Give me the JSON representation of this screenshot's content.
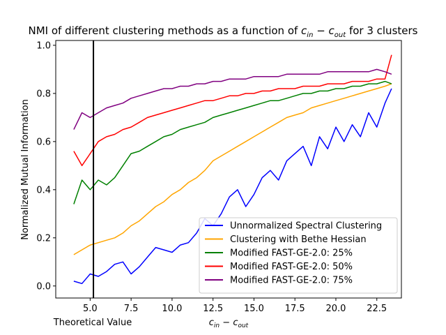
{
  "chart_data": {
    "type": "line",
    "title_prefix": "NMI of different clustering methods as a function of ",
    "title_math_a": "c",
    "title_sub_a": "in",
    "title_minus": " − ",
    "title_math_b": "c",
    "title_sub_b": "out",
    "title_suffix": " for 3 clusters",
    "xlabel_math_a": "c",
    "xlabel_sub_a": "in",
    "xlabel_minus": " − ",
    "xlabel_math_b": "c",
    "xlabel_sub_b": "out",
    "ylabel": "Normalized Mutual Information",
    "xlim": [
      2.9,
      24.0
    ],
    "ylim": [
      -0.05,
      1.02
    ],
    "xticks": [
      5.0,
      7.5,
      10.0,
      12.5,
      15.0,
      17.5,
      20.0,
      22.5
    ],
    "xtick_labels": [
      "5.0",
      "7.5",
      "10.0",
      "12.5",
      "15.0",
      "17.5",
      "20.0",
      "22.5"
    ],
    "yticks": [
      0.0,
      0.2,
      0.4,
      0.6,
      0.8,
      1.0
    ],
    "ytick_labels": [
      "0.0",
      "0.2",
      "0.4",
      "0.6",
      "0.8",
      "1.0"
    ],
    "vline": {
      "x": 5.2,
      "color": "#000000",
      "label": "Theoretical Value"
    },
    "grid": false,
    "legend_position": "lower-right",
    "series": [
      {
        "name": "Unnormalized Spectral Clustering",
        "color": "#0000ff",
        "x": [
          4.0,
          4.5,
          5.0,
          5.5,
          6.0,
          6.5,
          7.0,
          7.5,
          8.0,
          8.5,
          9.0,
          9.5,
          10.0,
          10.5,
          11.0,
          11.5,
          12.0,
          12.5,
          13.0,
          13.5,
          14.0,
          14.5,
          15.0,
          15.5,
          16.0,
          16.5,
          17.0,
          17.5,
          18.0,
          18.5,
          19.0,
          19.5,
          20.0,
          20.5,
          21.0,
          21.5,
          22.0,
          22.5,
          23.0,
          23.4
        ],
        "values": [
          0.02,
          0.01,
          0.05,
          0.04,
          0.06,
          0.09,
          0.1,
          0.05,
          0.08,
          0.12,
          0.16,
          0.15,
          0.14,
          0.17,
          0.18,
          0.22,
          0.28,
          0.25,
          0.3,
          0.37,
          0.4,
          0.33,
          0.38,
          0.45,
          0.48,
          0.44,
          0.52,
          0.55,
          0.58,
          0.5,
          0.62,
          0.57,
          0.66,
          0.6,
          0.67,
          0.62,
          0.72,
          0.66,
          0.76,
          0.82
        ]
      },
      {
        "name": "Clustering with Bethe Hessian",
        "color": "#ffa500",
        "x": [
          4.0,
          4.5,
          5.0,
          5.5,
          6.0,
          6.5,
          7.0,
          7.5,
          8.0,
          8.5,
          9.0,
          9.5,
          10.0,
          10.5,
          11.0,
          11.5,
          12.0,
          12.5,
          13.0,
          13.5,
          14.0,
          14.5,
          15.0,
          15.5,
          16.0,
          16.5,
          17.0,
          17.5,
          18.0,
          18.5,
          19.0,
          19.5,
          20.0,
          20.5,
          21.0,
          21.5,
          22.0,
          22.5,
          23.0,
          23.4
        ],
        "values": [
          0.13,
          0.15,
          0.17,
          0.18,
          0.19,
          0.2,
          0.22,
          0.25,
          0.27,
          0.3,
          0.33,
          0.35,
          0.38,
          0.4,
          0.43,
          0.45,
          0.48,
          0.52,
          0.54,
          0.56,
          0.58,
          0.6,
          0.62,
          0.64,
          0.66,
          0.68,
          0.7,
          0.71,
          0.72,
          0.74,
          0.75,
          0.76,
          0.77,
          0.78,
          0.79,
          0.8,
          0.81,
          0.82,
          0.83,
          0.84
        ]
      },
      {
        "name": "Modified FAST-GE-2.0: 25%",
        "color": "#008000",
        "x": [
          4.0,
          4.5,
          5.0,
          5.5,
          6.0,
          6.5,
          7.0,
          7.5,
          8.0,
          8.5,
          9.0,
          9.5,
          10.0,
          10.5,
          11.0,
          11.5,
          12.0,
          12.5,
          13.0,
          13.5,
          14.0,
          14.5,
          15.0,
          15.5,
          16.0,
          16.5,
          17.0,
          17.5,
          18.0,
          18.5,
          19.0,
          19.5,
          20.0,
          20.5,
          21.0,
          21.5,
          22.0,
          22.5,
          23.0,
          23.4
        ],
        "values": [
          0.34,
          0.44,
          0.4,
          0.44,
          0.42,
          0.45,
          0.5,
          0.55,
          0.56,
          0.58,
          0.6,
          0.62,
          0.63,
          0.65,
          0.66,
          0.67,
          0.68,
          0.7,
          0.71,
          0.72,
          0.73,
          0.74,
          0.75,
          0.76,
          0.77,
          0.77,
          0.78,
          0.79,
          0.8,
          0.8,
          0.81,
          0.81,
          0.82,
          0.82,
          0.83,
          0.83,
          0.84,
          0.84,
          0.85,
          0.84
        ]
      },
      {
        "name": "Modified FAST-GE-2.0: 50%",
        "color": "#ff0000",
        "x": [
          4.0,
          4.5,
          5.0,
          5.5,
          6.0,
          6.5,
          7.0,
          7.5,
          8.0,
          8.5,
          9.0,
          9.5,
          10.0,
          10.5,
          11.0,
          11.5,
          12.0,
          12.5,
          13.0,
          13.5,
          14.0,
          14.5,
          15.0,
          15.5,
          16.0,
          16.5,
          17.0,
          17.5,
          18.0,
          18.5,
          19.0,
          19.5,
          20.0,
          20.5,
          21.0,
          21.5,
          22.0,
          22.5,
          23.0,
          23.4
        ],
        "values": [
          0.56,
          0.5,
          0.55,
          0.6,
          0.62,
          0.63,
          0.65,
          0.66,
          0.68,
          0.7,
          0.71,
          0.72,
          0.73,
          0.74,
          0.75,
          0.76,
          0.77,
          0.77,
          0.78,
          0.79,
          0.79,
          0.8,
          0.8,
          0.81,
          0.81,
          0.82,
          0.82,
          0.82,
          0.83,
          0.83,
          0.83,
          0.84,
          0.84,
          0.84,
          0.85,
          0.85,
          0.85,
          0.86,
          0.86,
          0.96
        ]
      },
      {
        "name": "Modified FAST-GE-2.0: 75%",
        "color": "#800080",
        "x": [
          4.0,
          4.5,
          5.0,
          5.5,
          6.0,
          6.5,
          7.0,
          7.5,
          8.0,
          8.5,
          9.0,
          9.5,
          10.0,
          10.5,
          11.0,
          11.5,
          12.0,
          12.5,
          13.0,
          13.5,
          14.0,
          14.5,
          15.0,
          15.5,
          16.0,
          16.5,
          17.0,
          17.5,
          18.0,
          18.5,
          19.0,
          19.5,
          20.0,
          20.5,
          21.0,
          21.5,
          22.0,
          22.5,
          23.0,
          23.4
        ],
        "values": [
          0.65,
          0.72,
          0.7,
          0.72,
          0.74,
          0.75,
          0.76,
          0.78,
          0.79,
          0.8,
          0.81,
          0.82,
          0.82,
          0.83,
          0.83,
          0.84,
          0.84,
          0.85,
          0.85,
          0.86,
          0.86,
          0.86,
          0.87,
          0.87,
          0.87,
          0.87,
          0.88,
          0.88,
          0.88,
          0.88,
          0.88,
          0.89,
          0.89,
          0.89,
          0.89,
          0.89,
          0.89,
          0.9,
          0.89,
          0.88
        ]
      }
    ]
  }
}
